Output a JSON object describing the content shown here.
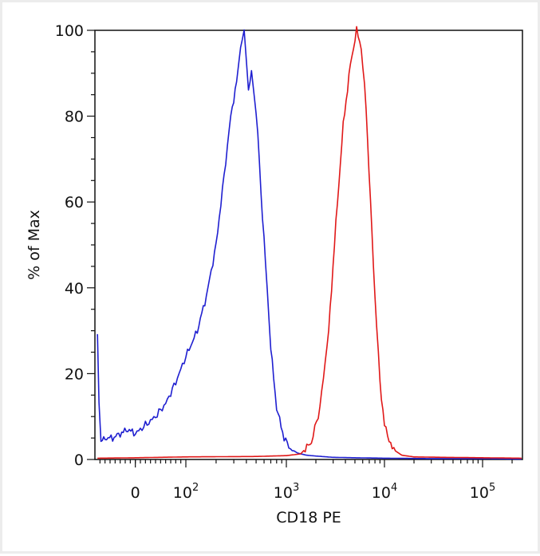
{
  "chart_data": {
    "type": "line",
    "title": "",
    "xlabel": "CD18 PE",
    "ylabel": "% of Max",
    "x_scale": "biexponential (logicle)",
    "xlim": [
      -80,
      250000
    ],
    "ylim": [
      0,
      100
    ],
    "x_tick_labels": [
      {
        "value": 0,
        "base": "0",
        "exp": ""
      },
      {
        "value": 100,
        "base": "10",
        "exp": "2"
      },
      {
        "value": 1000,
        "base": "10",
        "exp": "3"
      },
      {
        "value": 10000,
        "base": "10",
        "exp": "4"
      },
      {
        "value": 100000,
        "base": "10",
        "exp": "5"
      }
    ],
    "y_ticks": [
      0,
      20,
      40,
      60,
      80,
      100
    ],
    "grid": false,
    "series": [
      {
        "color": "#1f1fd0",
        "x": [
          -75,
          -72,
          -68,
          -60,
          -45,
          -30,
          -15,
          0,
          20,
          40,
          60,
          80,
          100,
          130,
          160,
          200,
          240,
          280,
          320,
          350,
          380,
          400,
          420,
          450,
          480,
          520,
          560,
          620,
          700,
          800,
          950,
          1100,
          1300,
          1600,
          2000,
          3000,
          5000,
          10000,
          30000,
          100000,
          250000
        ],
        "y": [
          29,
          14,
          4,
          5,
          5,
          6,
          7,
          6,
          8,
          10,
          13,
          18,
          24,
          30,
          38,
          50,
          66,
          80,
          88,
          96,
          100,
          93,
          86,
          90,
          85,
          76,
          62,
          46,
          26,
          12,
          5,
          2.5,
          1.5,
          1,
          0.8,
          0.5,
          0.4,
          0.3,
          0.2,
          0.2,
          0.1
        ]
      },
      {
        "color": "#e01818",
        "x": [
          -75,
          0,
          100,
          500,
          1000,
          1400,
          1800,
          2200,
          2700,
          3200,
          3800,
          4500,
          5200,
          5800,
          6500,
          7200,
          8000,
          9000,
          10000,
          12000,
          15000,
          20000,
          40000,
          100000,
          250000
        ],
        "y": [
          0.3,
          0.4,
          0.6,
          0.7,
          0.9,
          1.3,
          4,
          12,
          30,
          55,
          78,
          92,
          100,
          96,
          82,
          60,
          38,
          18,
          8,
          2.5,
          1,
          0.6,
          0.5,
          0.4,
          0.3
        ]
      }
    ]
  }
}
